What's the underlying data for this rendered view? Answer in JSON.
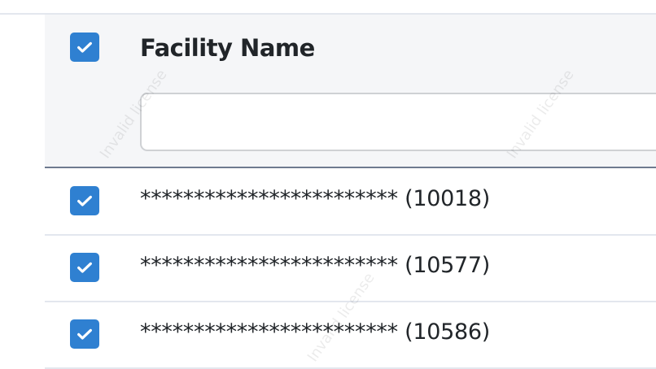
{
  "table": {
    "header": {
      "title": "Facility Name",
      "select_all_checked": true,
      "filter_value": "",
      "filter_placeholder": ""
    },
    "rows": [
      {
        "name": "************************ (10018)",
        "checked": true
      },
      {
        "name": "************************ (10577)",
        "checked": true
      },
      {
        "name": "************************ (10586)",
        "checked": true
      }
    ]
  },
  "watermark": "Invalid license",
  "colors": {
    "checkbox": "#2f80d1",
    "header_bg": "#f5f6f8",
    "header_border": "#6e7a8f"
  }
}
